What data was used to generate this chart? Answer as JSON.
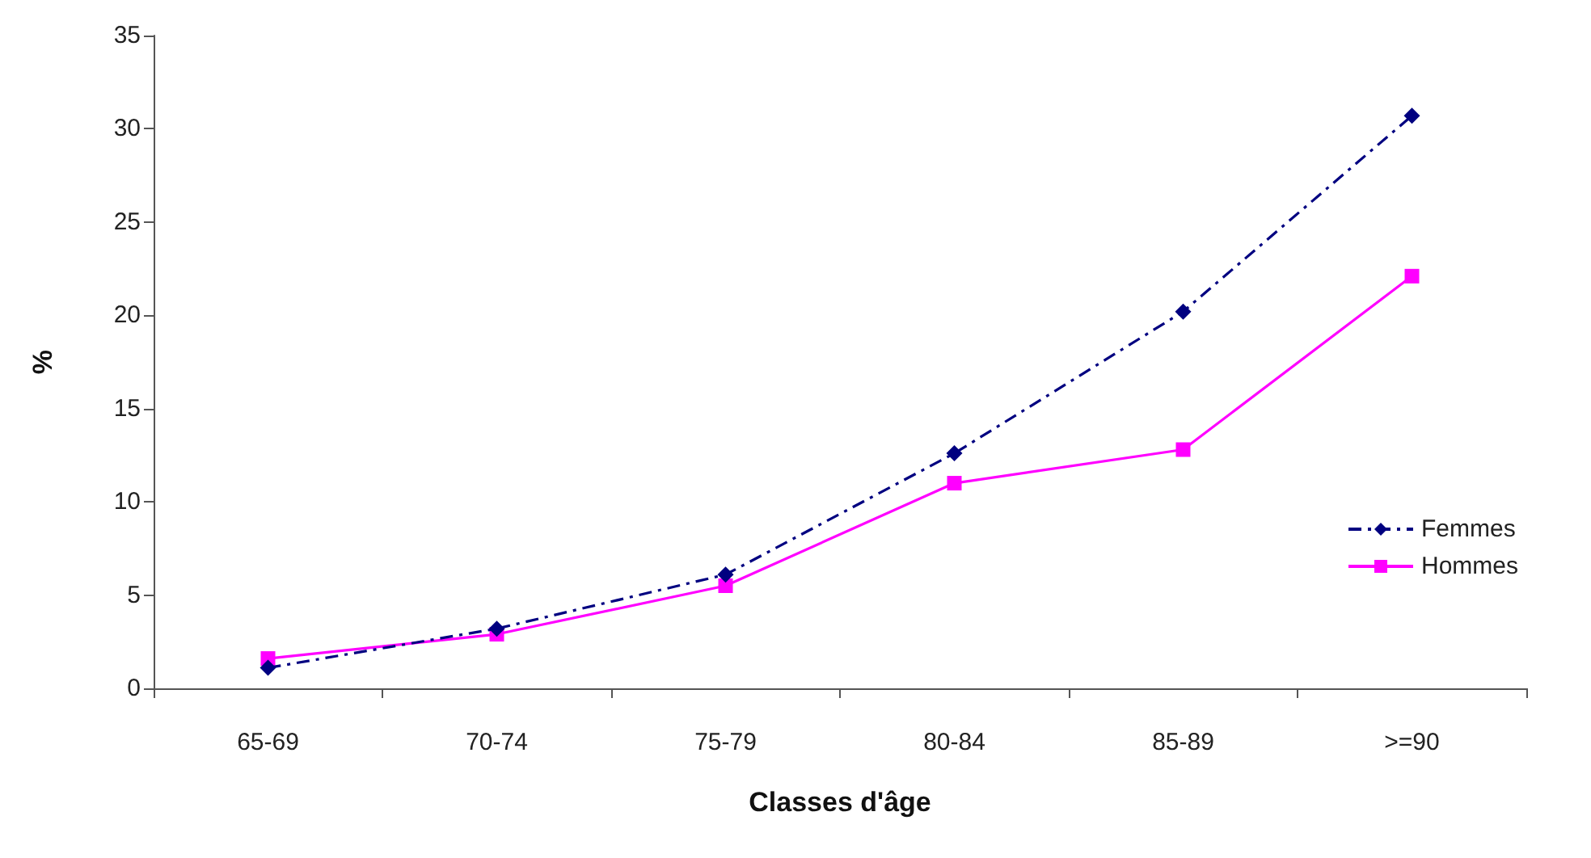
{
  "chart_data": {
    "type": "line",
    "xlabel": "Classes d'âge",
    "ylabel": "%",
    "categories": [
      "65-69",
      "70-74",
      "75-79",
      "80-84",
      "85-89",
      ">=90"
    ],
    "series": [
      {
        "name": "Femmes",
        "color": "#000080",
        "marker": "diamond",
        "line_style": "dashed",
        "values": [
          1.1,
          3.2,
          6.1,
          12.6,
          20.2,
          30.7
        ]
      },
      {
        "name": "Hommes",
        "color": "#ff00ff",
        "marker": "square",
        "line_style": "solid",
        "values": [
          1.6,
          2.9,
          5.5,
          11.0,
          12.8,
          22.1
        ]
      }
    ],
    "ylim": [
      0,
      35
    ],
    "yticks": [
      0,
      5,
      10,
      15,
      20,
      25,
      30,
      35
    ],
    "grid": false,
    "legend": "right"
  }
}
